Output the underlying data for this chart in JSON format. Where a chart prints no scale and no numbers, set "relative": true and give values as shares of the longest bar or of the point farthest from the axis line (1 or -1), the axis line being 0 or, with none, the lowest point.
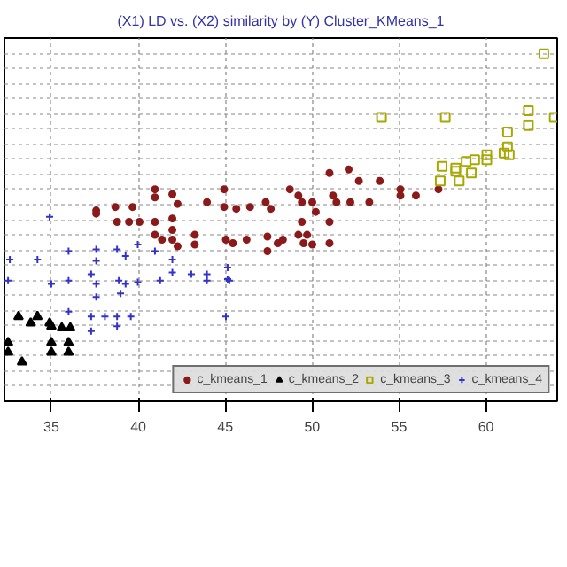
{
  "chart_data": {
    "type": "scatter",
    "title": "(X1) LD vs. (X2) similarity by (Y) Cluster_KMeans_1",
    "relative": true,
    "tick_labels": "x",
    "grid": true,
    "legend": "bottom right",
    "xlim": [
      32.3,
      64.1
    ],
    "xticks": [
      35,
      40,
      45,
      50,
      55,
      60
    ],
    "series": [
      {
        "name": "c_kmeans_1",
        "color": "#8b1a1a",
        "marker": "circle",
        "x": [
          37.58,
          37.58,
          38.68,
          39.67,
          40.96,
          40.96,
          41.96,
          42.26,
          43.95,
          44.94,
          44.94,
          45.64,
          46.43,
          47.33,
          47.62,
          38.78,
          39.47,
          40.07,
          40.96,
          41.96,
          41.96,
          40.96,
          41.36,
          41.96,
          42.26,
          43.25,
          43.25,
          45.04,
          45.44,
          46.23,
          47.43,
          47.43,
          48.02,
          51.0,
          52.1,
          52.69,
          53.89,
          48.72,
          55.08,
          55.08,
          55.97,
          57.27,
          49.21,
          50.01,
          51.2,
          52.2,
          53.29,
          51.4,
          49.41,
          50.21,
          51.0,
          49.41,
          49.21,
          49.71,
          49.51,
          50.01,
          51.0,
          48.32
        ],
        "values": [
          0.549,
          0.54,
          0.559,
          0.559,
          0.61,
          0.587,
          0.596,
          0.568,
          0.573,
          0.61,
          0.559,
          0.554,
          0.559,
          0.573,
          0.554,
          0.516,
          0.516,
          0.516,
          0.516,
          0.526,
          0.493,
          0.479,
          0.465,
          0.465,
          0.446,
          0.479,
          0.451,
          0.465,
          0.455,
          0.465,
          0.474,
          0.432,
          0.455,
          0.657,
          0.667,
          0.634,
          0.634,
          0.61,
          0.61,
          0.592,
          0.592,
          0.61,
          0.592,
          0.573,
          0.592,
          0.573,
          0.573,
          0.573,
          0.573,
          0.545,
          0.516,
          0.516,
          0.479,
          0.479,
          0.455,
          0.451,
          0.455,
          0.465
        ]
      },
      {
        "name": "c_kmeans_2",
        "color": "#000000",
        "marker": "triangle",
        "x": [
          33.11,
          33.81,
          34.2,
          34.9,
          35.0,
          35.6,
          36.09,
          32.51,
          35.0,
          35.99,
          32.51,
          35.0,
          35.99,
          33.31
        ],
        "values": [
          0.244,
          0.225,
          0.244,
          0.225,
          0.216,
          0.211,
          0.211,
          0.169,
          0.169,
          0.169,
          0.141,
          0.141,
          0.141,
          0.113
        ]
      },
      {
        "name": "c_kmeans_3",
        "color": "#a8a800",
        "marker": "square",
        "x": [
          63.33,
          53.99,
          57.66,
          62.44,
          63.93,
          62.44,
          61.24,
          61.24,
          61.04,
          61.34,
          60.05,
          60.05,
          59.35,
          58.86,
          57.47,
          58.26,
          58.26,
          59.16,
          57.37,
          58.46
        ],
        "values": [
          1.0,
          0.817,
          0.817,
          0.836,
          0.817,
          0.793,
          0.775,
          0.732,
          0.714,
          0.709,
          0.709,
          0.695,
          0.695,
          0.69,
          0.676,
          0.671,
          0.662,
          0.657,
          0.634,
          0.634
        ]
      },
      {
        "name": "c_kmeans_4",
        "color": "#3333cc",
        "marker": "cross",
        "x": [
          34.9,
          32.61,
          34.2,
          35.99,
          37.58,
          37.58,
          38.78,
          39.27,
          39.97,
          40.96,
          41.96,
          41.96,
          41.26,
          43.05,
          43.95,
          45.14,
          45.14,
          32.51,
          35.0,
          35.99,
          37.29,
          37.58,
          38.88,
          39.27,
          39.97,
          37.58,
          38.98,
          35.99,
          37.29,
          38.08,
          38.78,
          39.57,
          45.04,
          37.29,
          38.78,
          43.95,
          45.24
        ],
        "values": [
          0.531,
          0.408,
          0.408,
          0.432,
          0.437,
          0.404,
          0.437,
          0.418,
          0.451,
          0.432,
          0.408,
          0.371,
          0.347,
          0.366,
          0.366,
          0.385,
          0.352,
          0.347,
          0.338,
          0.347,
          0.366,
          0.338,
          0.347,
          0.338,
          0.343,
          0.3,
          0.31,
          0.258,
          0.244,
          0.244,
          0.244,
          0.244,
          0.244,
          0.202,
          0.216,
          0.347,
          0.347
        ]
      }
    ]
  }
}
